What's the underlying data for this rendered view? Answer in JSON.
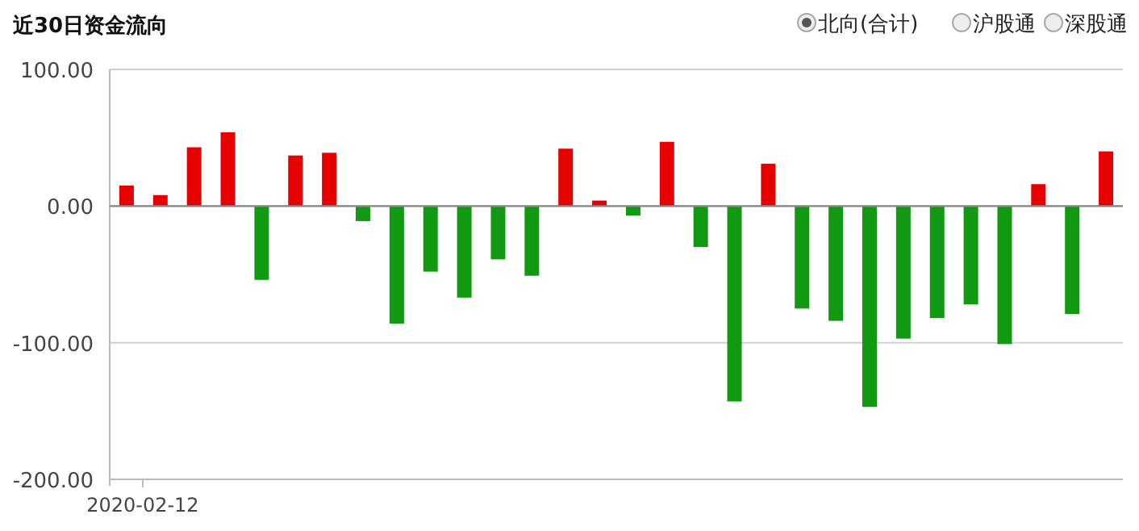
{
  "chart_data": {
    "type": "bar",
    "title": "近30日资金流向",
    "annotations": [
      "北向(合计)",
      "沪股通",
      "深股通"
    ],
    "categories": [
      "2020-02-12",
      null,
      null,
      null,
      null,
      null,
      null,
      null,
      null,
      null,
      null,
      null,
      null,
      null,
      null,
      null,
      null,
      null,
      null,
      null,
      null,
      null,
      null,
      null,
      null,
      null,
      null,
      null,
      null,
      null
    ],
    "values": [
      15,
      8,
      43,
      54,
      -54,
      37,
      39,
      -11,
      -86,
      -48,
      -67,
      -39,
      -51,
      42,
      4,
      -7,
      47,
      -30,
      -143,
      31,
      -75,
      -84,
      -147,
      -97,
      -82,
      -72,
      -101,
      16,
      -79,
      40
    ],
    "colors": [
      "#e60000",
      "#e60000",
      "#e60000",
      "#e60000",
      "#119911",
      "#e60000",
      "#e60000",
      "#119911",
      "#119911",
      "#119911",
      "#119911",
      "#119911",
      "#119911",
      "#e60000",
      "#e60000",
      "#119911",
      "#e60000",
      "#119911",
      "#119911",
      "#e60000",
      "#119911",
      "#119911",
      "#119911",
      "#119911",
      "#119911",
      "#119911",
      "#119911",
      "#e60000",
      "#119911",
      "#e60000"
    ],
    "ylim": [
      -200,
      100
    ],
    "yticks": [
      {
        "value": -200,
        "label": "-200.00"
      },
      {
        "value": -100,
        "label": "-100.00"
      },
      {
        "value": 0,
        "label": "0.00"
      },
      {
        "value": 100,
        "label": "100.00"
      }
    ],
    "grid": "y"
  }
}
